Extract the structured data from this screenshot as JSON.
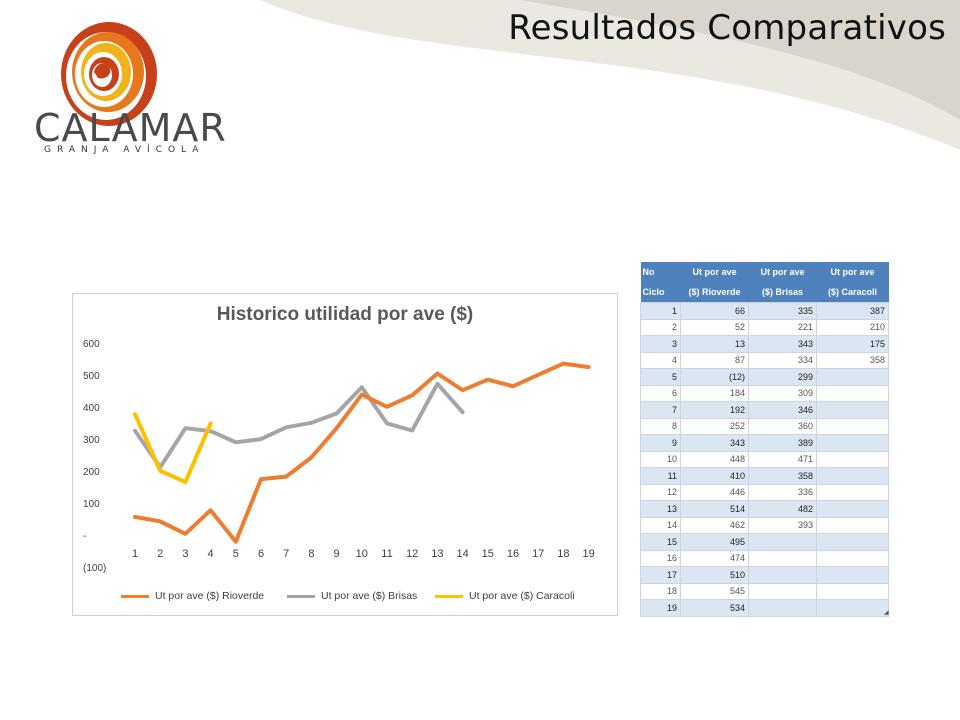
{
  "slide": {
    "title": "Resultados Comparativos"
  },
  "logo": {
    "name": "CALAMAR",
    "subtitle": "GRANJA AVÍCOLA"
  },
  "colors": {
    "rioverde": "#ed7d31",
    "brisas": "#a5a5a5",
    "caracoli": "#ffc000",
    "table_header": "#4f81bd",
    "table_band": "#dce6f2",
    "swoosh": "#d9d4cc"
  },
  "chart_data": {
    "type": "line",
    "title": "Historico utilidad por ave ($)",
    "xlabel": "",
    "ylabel": "",
    "categories": [
      "1",
      "2",
      "3",
      "4",
      "5",
      "6",
      "7",
      "8",
      "9",
      "10",
      "11",
      "12",
      "13",
      "14",
      "15",
      "16",
      "17",
      "18",
      "19"
    ],
    "ylim": [
      -100,
      600
    ],
    "yticks": [
      "600",
      "500",
      "400",
      "300",
      "200",
      "100",
      "-",
      "(100)"
    ],
    "grid": false,
    "legend_position": "bottom",
    "series": [
      {
        "name": "Ut por ave ($) Rioverde",
        "values": [
          66,
          52,
          13,
          87,
          -12,
          184,
          192,
          252,
          343,
          448,
          410,
          446,
          514,
          462,
          495,
          474,
          510,
          545,
          534
        ]
      },
      {
        "name": "Ut por ave ($) Brisas",
        "values": [
          335,
          221,
          343,
          334,
          299,
          309,
          346,
          360,
          389,
          471,
          358,
          336,
          482,
          393,
          null,
          null,
          null,
          null,
          null
        ]
      },
      {
        "name": "Ut por ave ($) Caracoli",
        "values": [
          387,
          210,
          175,
          358,
          null,
          null,
          null,
          null,
          null,
          null,
          null,
          null,
          null,
          null,
          null,
          null,
          null,
          null,
          null
        ]
      }
    ]
  },
  "table": {
    "headers": [
      [
        "No",
        "Ciclo"
      ],
      [
        "Ut por ave",
        "($) Rioverde"
      ],
      [
        "Ut por ave",
        "($) Brisas"
      ],
      [
        "Ut por ave",
        "($) Caracoli"
      ]
    ],
    "rows": [
      [
        "1",
        "66",
        "335",
        "387"
      ],
      [
        "2",
        "52",
        "221",
        "210"
      ],
      [
        "3",
        "13",
        "343",
        "175"
      ],
      [
        "4",
        "87",
        "334",
        "358"
      ],
      [
        "5",
        "(12)",
        "299",
        ""
      ],
      [
        "6",
        "184",
        "309",
        ""
      ],
      [
        "7",
        "192",
        "346",
        ""
      ],
      [
        "8",
        "252",
        "360",
        ""
      ],
      [
        "9",
        "343",
        "389",
        ""
      ],
      [
        "10",
        "448",
        "471",
        ""
      ],
      [
        "11",
        "410",
        "358",
        ""
      ],
      [
        "12",
        "446",
        "336",
        ""
      ],
      [
        "13",
        "514",
        "482",
        ""
      ],
      [
        "14",
        "462",
        "393",
        ""
      ],
      [
        "15",
        "495",
        "",
        ""
      ],
      [
        "16",
        "474",
        "",
        ""
      ],
      [
        "17",
        "510",
        "",
        ""
      ],
      [
        "18",
        "545",
        "",
        ""
      ],
      [
        "19",
        "534",
        "",
        ""
      ]
    ]
  }
}
